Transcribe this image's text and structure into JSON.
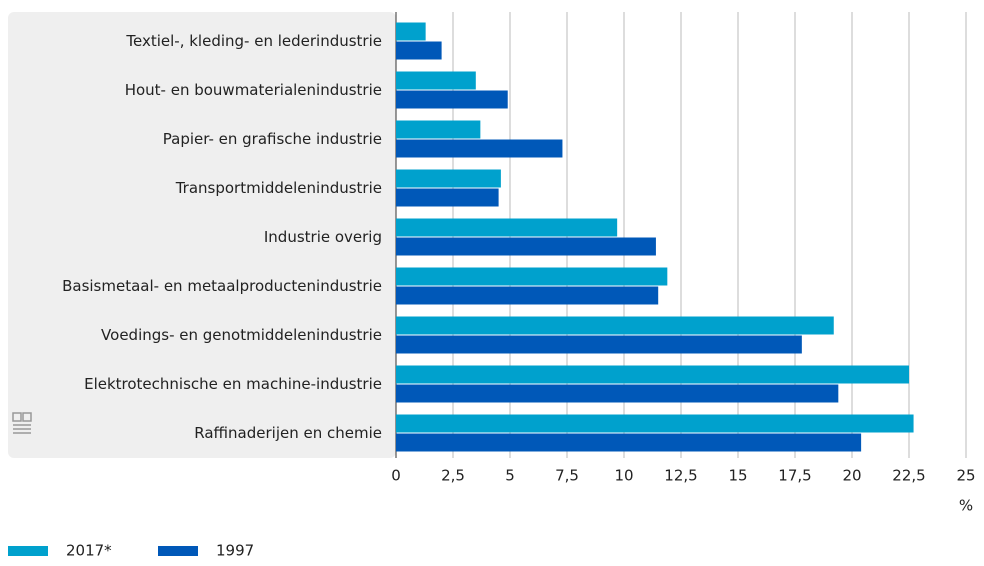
{
  "chart_data": {
    "type": "barh",
    "categories": [
      "Textiel-, kleding- en lederindustrie",
      "Hout- en bouwmaterialenindustrie",
      "Papier- en grafische industrie",
      "Transportmiddelenindustrie",
      "Industrie overig",
      "Basismetaal- en metaalproductenindustrie",
      "Voedings- en genotmiddelenindustrie",
      "Elektrotechnische en machine-industrie",
      "Raffinaderijen en chemie"
    ],
    "series": [
      {
        "name": "2017*",
        "color": "#00a1cd",
        "values": [
          1.3,
          3.5,
          3.7,
          4.6,
          9.7,
          11.9,
          19.2,
          22.5,
          22.7
        ]
      },
      {
        "name": "1997",
        "color": "#0058b8",
        "values": [
          2.0,
          4.9,
          7.3,
          4.5,
          11.4,
          11.5,
          17.8,
          19.4,
          20.4
        ]
      }
    ],
    "xlabel": "%",
    "xlim": [
      0,
      25
    ],
    "xticks": [
      0,
      {
        "value": 2.5,
        "label": "2,5"
      },
      5,
      {
        "value": 7.5,
        "label": "7,5"
      },
      10,
      {
        "value": 12.5,
        "label": "12,5"
      },
      15,
      {
        "value": 17.5,
        "label": "17,5"
      },
      20,
      {
        "value": 22.5,
        "label": "22,5"
      },
      25
    ],
    "grid": true
  }
}
